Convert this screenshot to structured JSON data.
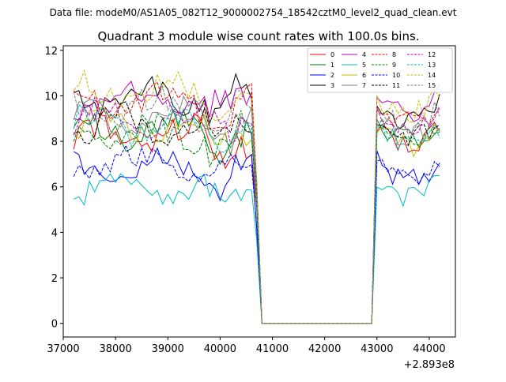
{
  "chart_data": {
    "type": "line",
    "suptitle": "Data file: modeM0/AS1A05_082T12_9000002754_18542cztM0_level2_quad_clean.evt",
    "title": "Quadrant 3 module wise count rates with 100.0s bins.",
    "xlabel": "",
    "ylabel": "",
    "x_offset_label": "+2.893e8",
    "xlim": [
      37000,
      44500
    ],
    "ylim": [
      -0.6,
      12.2
    ],
    "xticks": [
      37000,
      38000,
      39000,
      40000,
      41000,
      42000,
      43000,
      44000
    ],
    "xtick_labels": [
      "37000",
      "38000",
      "39000",
      "40000",
      "41000",
      "42000",
      "43000",
      "44000"
    ],
    "yticks": [
      0,
      2,
      4,
      6,
      8,
      10,
      12
    ],
    "ytick_labels": [
      "0",
      "2",
      "4",
      "6",
      "8",
      "10",
      "12"
    ],
    "grid": false,
    "legend_position": "top-right",
    "series": [
      {
        "name": "0",
        "color": "#ff0000",
        "dash": "solid",
        "base": 8.2,
        "after": 8.7
      },
      {
        "name": "1",
        "color": "#008000",
        "dash": "solid",
        "base": 8.5,
        "after": 8.9
      },
      {
        "name": "2",
        "color": "#0000ff",
        "dash": "solid",
        "base": 6.7,
        "after": 7.1
      },
      {
        "name": "3",
        "color": "#000000",
        "dash": "solid",
        "base": 10.0,
        "after": 9.7
      },
      {
        "name": "4",
        "color": "#bf00bf",
        "dash": "solid",
        "base": 9.8,
        "after": 10.0
      },
      {
        "name": "5",
        "color": "#00bfbf",
        "dash": "solid",
        "base": 5.9,
        "after": 6.3
      },
      {
        "name": "6",
        "color": "#bfbf00",
        "dash": "solid",
        "base": 8.6,
        "after": 8.6
      },
      {
        "name": "7",
        "color": "#808080",
        "dash": "solid",
        "base": 9.0,
        "after": 9.0
      },
      {
        "name": "8",
        "color": "#ff0000",
        "dash": "dashed",
        "base": 9.7,
        "after": 9.6
      },
      {
        "name": "9",
        "color": "#008000",
        "dash": "dashed",
        "base": 8.3,
        "after": 8.8
      },
      {
        "name": "10",
        "color": "#0000ff",
        "dash": "dashed",
        "base": 6.9,
        "after": 7.3
      },
      {
        "name": "11",
        "color": "#000000",
        "dash": "dashed",
        "base": 8.7,
        "after": 8.9
      },
      {
        "name": "12",
        "color": "#bf00bf",
        "dash": "dashed",
        "base": 9.0,
        "after": 9.2
      },
      {
        "name": "13",
        "color": "#00bfbf",
        "dash": "dashed",
        "base": 8.7,
        "after": 8.6
      },
      {
        "name": "14",
        "color": "#bfbf00",
        "dash": "dashed",
        "base": 10.2,
        "after": 10.0
      },
      {
        "name": "15",
        "color": "#808080",
        "dash": "dashed",
        "base": 9.4,
        "after": 9.5
      }
    ],
    "segments": {
      "start": 37200,
      "step": 100,
      "drop_start": 40700,
      "zero_from": 40800,
      "zero_to": 42900,
      "rise_at": 43000,
      "end": 44200
    }
  }
}
